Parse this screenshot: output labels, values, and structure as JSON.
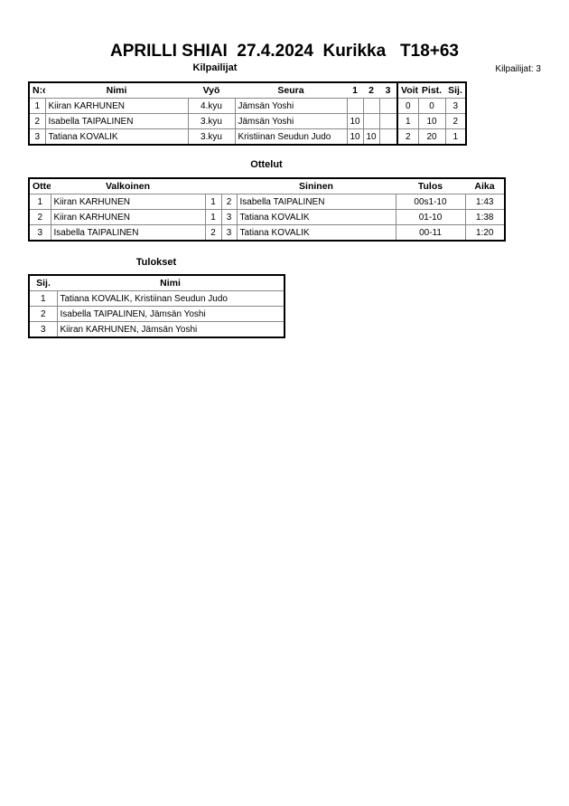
{
  "title": "APRILLI SHIAI  27.4.2024  Kurikka   T18+63",
  "competitors": {
    "heading": "Kilpailijat",
    "count_label": "Kilpailijat: 3",
    "columns": [
      "N:o",
      "Nimi",
      "Vyö",
      "Seura",
      "1",
      "2",
      "3",
      "Voit.",
      "Pist.",
      "Sij."
    ],
    "rows": [
      [
        "1",
        "Kiiran KARHUNEN",
        "4.kyu",
        "Jämsän Yoshi",
        "",
        "",
        "",
        "0",
        "0",
        "3"
      ],
      [
        "2",
        "Isabella TAIPALINEN",
        "3.kyu",
        "Jämsän Yoshi",
        "10",
        "",
        "",
        "1",
        "10",
        "2"
      ],
      [
        "3",
        "Tatiana KOVALIK",
        "3.kyu",
        "Kristiinan Seudun Judo",
        "10",
        "10",
        "",
        "2",
        "20",
        "1"
      ]
    ]
  },
  "matches": {
    "heading": "Ottelut",
    "columns": [
      "Ottelu",
      "Valkoinen",
      "",
      "",
      "Sininen",
      "Tulos",
      "Aika"
    ],
    "rows": [
      [
        "1",
        "Kiiran KARHUNEN",
        "1",
        "2",
        "Isabella TAIPALINEN",
        "00s1-10",
        "1:43"
      ],
      [
        "2",
        "Kiiran KARHUNEN",
        "1",
        "3",
        "Tatiana KOVALIK",
        "01-10",
        "1:38"
      ],
      [
        "3",
        "Isabella TAIPALINEN",
        "2",
        "3",
        "Tatiana KOVALIK",
        "00-11",
        "1:20"
      ]
    ]
  },
  "results": {
    "heading": "Tulokset",
    "columns": [
      "Sij.",
      "Nimi"
    ],
    "rows": [
      [
        "1",
        "Tatiana KOVALIK, Kristiinan Seudun Judo"
      ],
      [
        "2",
        "Isabella TAIPALINEN, Jämsän Yoshi"
      ],
      [
        "3",
        "Kiiran KARHUNEN, Jämsän Yoshi"
      ]
    ]
  }
}
